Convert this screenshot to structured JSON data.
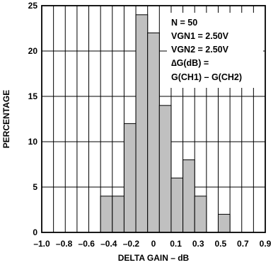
{
  "chart_data": {
    "type": "bar",
    "title": "",
    "xlabel": "DELTA GAIN – dB",
    "ylabel": "PERCENTAGE",
    "xlim": [
      -1.0,
      0.9
    ],
    "ylim": [
      0,
      25
    ],
    "bin_width": 0.1,
    "x_ticks": [
      "–1.0",
      "–0.8",
      "–0.6",
      "–0.4",
      "–0.2",
      "0",
      "0.1",
      "0.3",
      "0.5",
      "0.7",
      "0.9"
    ],
    "y_ticks": [
      "0",
      "5",
      "10",
      "15",
      "20",
      "25"
    ],
    "bins": [
      {
        "x0": -0.5,
        "value": 4
      },
      {
        "x0": -0.4,
        "value": 4
      },
      {
        "x0": -0.3,
        "value": 12
      },
      {
        "x0": -0.2,
        "value": 24
      },
      {
        "x0": -0.1,
        "value": 22
      },
      {
        "x0": 0.0,
        "value": 14
      },
      {
        "x0": 0.1,
        "value": 6
      },
      {
        "x0": 0.2,
        "value": 8
      },
      {
        "x0": 0.3,
        "value": 4
      },
      {
        "x0": 0.5,
        "value": 2
      }
    ],
    "annotation": [
      "N = 50",
      "VGN1 = 2.50V",
      "VGN2 = 2.50V",
      "∆G(dB) =",
      "G(CH1) – G(CH2)"
    ],
    "grid": true,
    "colors": {
      "bar_fill": "#c0c0c0",
      "line": "#000000",
      "background": "#ffffff"
    }
  }
}
